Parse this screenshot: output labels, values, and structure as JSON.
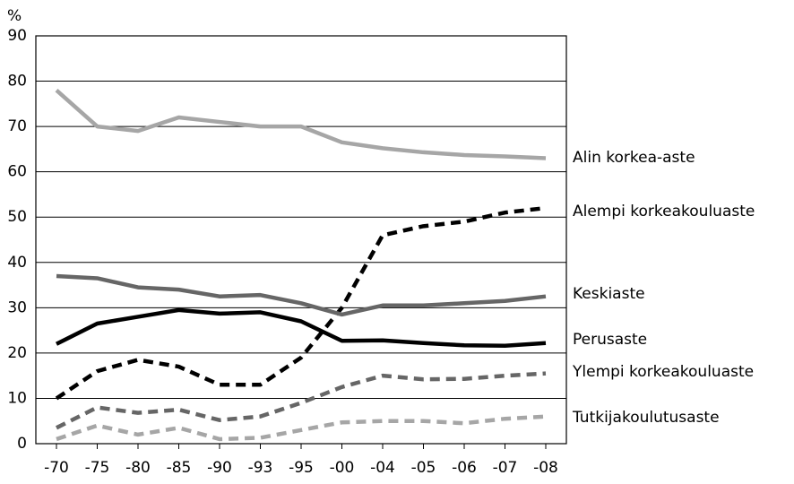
{
  "chart_data": {
    "type": "line",
    "y_label": "%",
    "categories": [
      "-70",
      "-75",
      "-80",
      "-85",
      "-90",
      "-93",
      "-95",
      "-00",
      "-04",
      "-05",
      "-06",
      "-07",
      "-08"
    ],
    "ylim": [
      0,
      90
    ],
    "yticks": [
      0,
      10,
      20,
      30,
      40,
      50,
      60,
      70,
      80,
      90
    ],
    "grid": true,
    "series": [
      {
        "name": "Alin korkea-aste",
        "color": "#a6a6a6",
        "dashed": false,
        "values": [
          78,
          70,
          69,
          72,
          71,
          70,
          70,
          66.5,
          65.2,
          64.3,
          63.7,
          63.4,
          63
        ]
      },
      {
        "name": "Alempi korkeakouluaste",
        "color": "#000000",
        "dashed": true,
        "values": [
          10,
          16,
          18.5,
          17,
          13,
          13,
          19,
          30,
          46,
          48,
          49,
          51,
          52
        ]
      },
      {
        "name": "Keskiaste",
        "color": "#666666",
        "dashed": false,
        "values": [
          37,
          36.5,
          34.5,
          34,
          32.5,
          32.8,
          31,
          28.5,
          30.5,
          30.5,
          31,
          31.5,
          32.5
        ]
      },
      {
        "name": "Perusaste",
        "color": "#000000",
        "dashed": false,
        "values": [
          22,
          26.5,
          28,
          29.5,
          28.7,
          29,
          27,
          22.7,
          22.8,
          22.2,
          21.7,
          21.6,
          22.2
        ]
      },
      {
        "name": "Ylempi korkeakouluaste",
        "color": "#666666",
        "dashed": true,
        "values": [
          3.5,
          8,
          6.8,
          7.5,
          5.2,
          6,
          9,
          12.5,
          15,
          14.2,
          14.3,
          15,
          15.5
        ]
      },
      {
        "name": "Tutkijakoulutusaste",
        "color": "#a6a6a6",
        "dashed": true,
        "values": [
          1,
          4,
          2,
          3.5,
          1,
          1.3,
          3,
          4.7,
          5,
          5,
          4.5,
          5.5,
          6
        ]
      }
    ]
  }
}
